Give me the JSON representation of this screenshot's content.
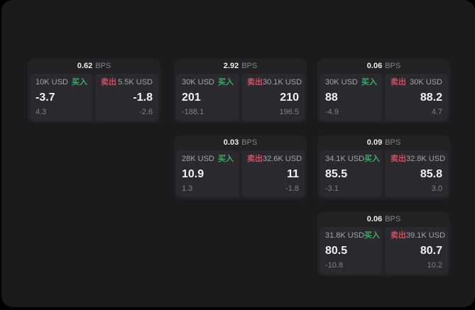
{
  "window": {
    "background": "#000000",
    "panel_background": "#1b1b1d",
    "card_background": "#222225",
    "tile_background": "#2a2a2e"
  },
  "labels": {
    "buy": "买入",
    "sell": "卖出",
    "unit": "BPS"
  },
  "colors": {
    "buy": "#3cab67",
    "sell": "#cc5063",
    "value_text": "#f2f2f4",
    "muted_text": "#85868a"
  },
  "cards": [
    {
      "bps": "0.62",
      "buy": {
        "amount": "10K USD",
        "value": "-3.7",
        "sub": "4.3"
      },
      "sell": {
        "amount": "5.5K USD",
        "value": "-1.8",
        "sub": "-2.6"
      }
    },
    {
      "bps": "2.92",
      "buy": {
        "amount": "30K USD",
        "value": "201",
        "sub": "-188.1"
      },
      "sell": {
        "amount": "30.1K USD",
        "value": "210",
        "sub": "196.5"
      }
    },
    {
      "bps": "0.06",
      "buy": {
        "amount": "30K USD",
        "value": "88",
        "sub": "-4.9"
      },
      "sell": {
        "amount": "30K USD",
        "value": "88.2",
        "sub": "4.7"
      }
    },
    {
      "bps": "0.03",
      "buy": {
        "amount": "28K USD",
        "value": "10.9",
        "sub": "1.3"
      },
      "sell": {
        "amount": "32.6K USD",
        "value": "11",
        "sub": "-1.8"
      }
    },
    {
      "bps": "0.09",
      "buy": {
        "amount": "34.1K USD",
        "value": "85.5",
        "sub": "-3.1"
      },
      "sell": {
        "amount": "32.8K USD",
        "value": "85.8",
        "sub": "3.0"
      }
    },
    {
      "bps": "0.06",
      "buy": {
        "amount": "31.8K USD",
        "value": "80.5",
        "sub": "-10.8"
      },
      "sell": {
        "amount": "39.1K USD",
        "value": "80.7",
        "sub": "10.2"
      }
    }
  ]
}
